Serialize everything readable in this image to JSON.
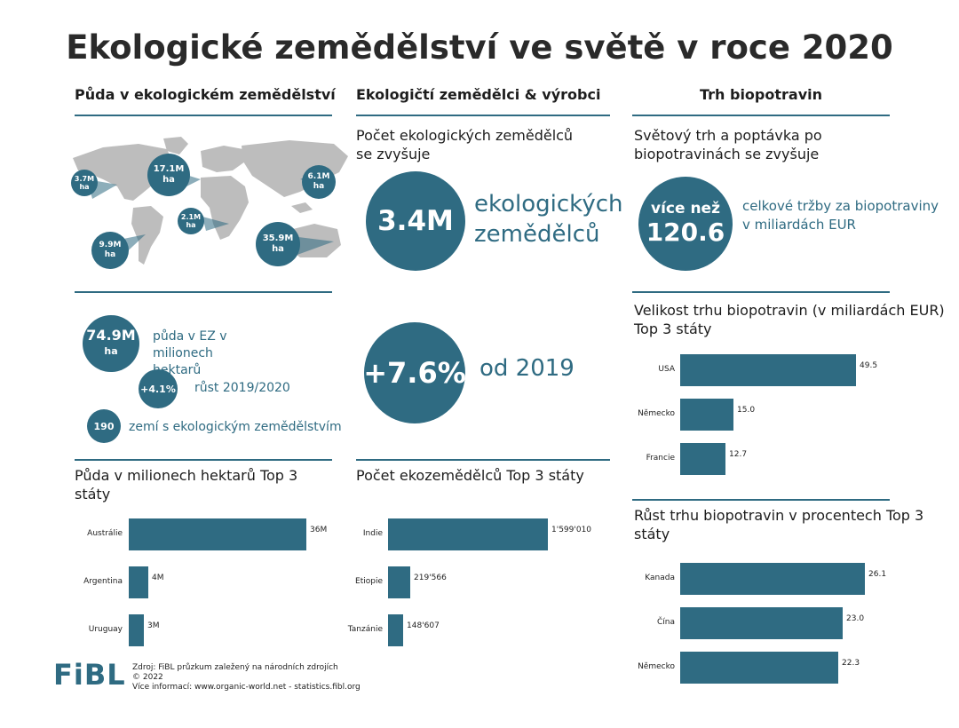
{
  "title": "Ekologické zemědělství ve světě v roce 2020",
  "columns": {
    "land": "Půda v ekologickém zemědělství",
    "producers": "Ekologičtí zemědělci & výrobci",
    "market": "Trh biopotravin"
  },
  "map_bubbles": [
    {
      "value": "3.7M",
      "unit": "ha"
    },
    {
      "value": "17.1M",
      "unit": "ha"
    },
    {
      "value": "6.1M",
      "unit": "ha"
    },
    {
      "value": "2.1M",
      "unit": "ha"
    },
    {
      "value": "9.9M",
      "unit": "ha"
    },
    {
      "value": "35.9M",
      "unit": "ha"
    }
  ],
  "land_stats": {
    "area_value": "74.9M",
    "area_unit": "ha",
    "area_text": "půda v EZ v milionech hektarů",
    "growth_value": "+4.1%",
    "growth_text": "růst 2019/2020",
    "countries_value": "190",
    "countries_text": "zemí s ekologickým zemědělstvím"
  },
  "producers": {
    "subhead": "Počet ekologických zemědělců se zvyšuje",
    "count_value": "3.4M",
    "count_text": "ekologických zemědělců",
    "growth_value": "+7.6%",
    "growth_text": "od 2019"
  },
  "market": {
    "subhead": "Světový trh a poptávka po biopotravinách se zvyšuje",
    "sales_prefix": "více než",
    "sales_value": "120.6",
    "sales_text": "celkové tržby za biopotraviny v miliardách EUR"
  },
  "chart_data": [
    {
      "type": "bar",
      "title": "Půda v milionech hektarů Top 3 státy",
      "categories": [
        "Austrálie",
        "Argentina",
        "Uruguay"
      ],
      "values": [
        36,
        4,
        3
      ],
      "value_labels": [
        "36M",
        "4M",
        "3M"
      ],
      "orientation": "horizontal"
    },
    {
      "type": "bar",
      "title": "Počet ekozemědělců Top 3 státy",
      "categories": [
        "Indie",
        "Etiopie",
        "Tanzánie"
      ],
      "values": [
        1599010,
        219566,
        148607
      ],
      "value_labels": [
        "1'599'010",
        "219'566",
        "148'607"
      ],
      "orientation": "horizontal"
    },
    {
      "type": "bar",
      "title": "Velikost trhu biopotravin (v miliardách EUR) Top 3 státy",
      "categories": [
        "USA",
        "Německo",
        "Francie"
      ],
      "values": [
        49.5,
        15.0,
        12.7
      ],
      "value_labels": [
        "49.5",
        "15.0",
        "12.7"
      ],
      "orientation": "horizontal"
    },
    {
      "type": "bar",
      "title": "Růst trhu biopotravin v procentech Top 3 státy",
      "categories": [
        "Kanada",
        "Čína",
        "Německo"
      ],
      "values": [
        26.1,
        23.0,
        22.3
      ],
      "value_labels": [
        "26.1",
        "23.0",
        "22.3"
      ],
      "orientation": "horizontal"
    }
  ],
  "footer": {
    "logo": "FiBL",
    "source": "Zdroj: FiBL průzkum zaležený na národních zdrojích",
    "copyright": "© 2022",
    "info": "Více informací: www.organic-world.net - statistics.fibl.org"
  },
  "colors": {
    "accent": "#2f6b82",
    "map": "#bdbdbd"
  }
}
